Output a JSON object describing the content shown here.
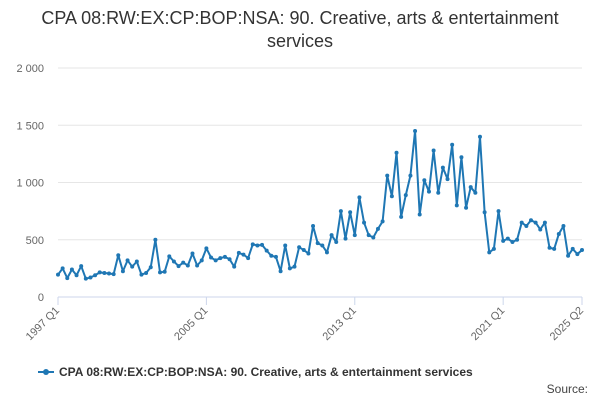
{
  "chart_data": {
    "type": "line",
    "title": "CPA 08:RW:EX:CP:BOP:NSA: 90. Creative, arts & entertainment services",
    "xlabel": "",
    "ylabel": "",
    "ylim": [
      0,
      2000
    ],
    "y_ticks": [
      "0",
      "500",
      "1 000",
      "1 500",
      "2 000"
    ],
    "y_tick_values": [
      0,
      500,
      1000,
      1500,
      2000
    ],
    "x_ticks": [
      "1997 Q1",
      "2005 Q1",
      "2013 Q1",
      "2021 Q1",
      "2025 Q2"
    ],
    "x_tick_index": [
      0,
      32,
      64,
      96,
      113
    ],
    "grid": true,
    "legend_position": "bottom",
    "color": "#1f77b4",
    "series": [
      {
        "name": "CPA 08:RW:EX:CP:BOP:NSA: 90. Creative, arts & entertainment services",
        "values": [
          195,
          250,
          165,
          240,
          190,
          270,
          160,
          170,
          190,
          215,
          210,
          205,
          200,
          365,
          225,
          320,
          265,
          310,
          195,
          210,
          260,
          500,
          215,
          220,
          355,
          310,
          270,
          300,
          275,
          380,
          275,
          320,
          425,
          345,
          320,
          340,
          350,
          330,
          265,
          385,
          370,
          340,
          460,
          450,
          455,
          405,
          360,
          350,
          225,
          450,
          250,
          265,
          435,
          410,
          380,
          620,
          470,
          450,
          390,
          540,
          480,
          750,
          510,
          740,
          540,
          870,
          650,
          540,
          520,
          595,
          660,
          1060,
          880,
          1260,
          700,
          890,
          1060,
          1450,
          720,
          1020,
          920,
          1280,
          910,
          1130,
          1030,
          1330,
          800,
          1220,
          780,
          960,
          910,
          1400,
          740,
          390,
          420,
          750,
          490,
          510,
          480,
          500,
          650,
          620,
          670,
          650,
          590,
          650,
          430,
          420,
          550,
          620,
          360,
          420,
          375,
          410
        ]
      }
    ]
  },
  "legend": {
    "label": "CPA 08:RW:EX:CP:BOP:NSA: 90. Creative, arts & entertainment services"
  },
  "source": {
    "label": "Source:"
  }
}
